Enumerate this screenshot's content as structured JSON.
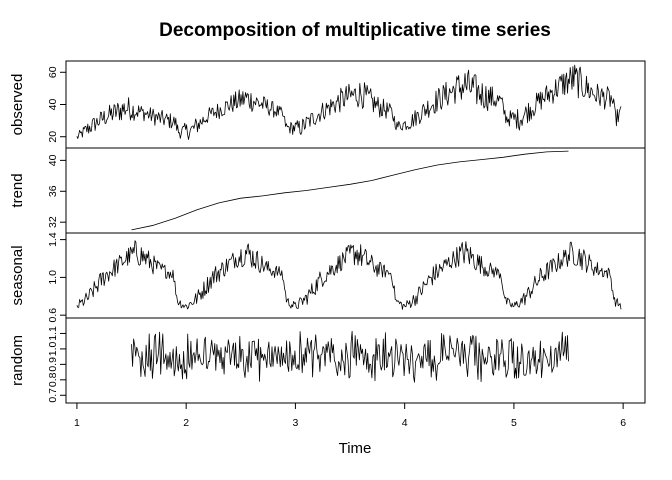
{
  "chart_data": {
    "type": "line",
    "title": "Decomposition of multiplicative time series",
    "xlabel": "Time",
    "xlim": [
      0.9,
      6.2
    ],
    "x_ticks": [
      "1",
      "2",
      "3",
      "4",
      "5",
      "6"
    ],
    "x_tick_values": [
      1,
      2,
      3,
      4,
      5,
      6
    ],
    "series_color": "#000000",
    "panels": [
      {
        "ylabel": "observed",
        "ylim": [
          13,
          67
        ],
        "y_ticks": [
          "20",
          "40",
          "60"
        ],
        "y_tick_values": [
          20,
          40,
          60
        ],
        "x_range": [
          1.0,
          5.98
        ],
        "envelope": [
          {
            "x": 1.0,
            "lo": 17,
            "hi": 22
          },
          {
            "x": 1.1,
            "lo": 20,
            "hi": 30
          },
          {
            "x": 1.25,
            "lo": 26,
            "hi": 38
          },
          {
            "x": 1.45,
            "lo": 30,
            "hi": 46
          },
          {
            "x": 1.6,
            "lo": 30,
            "hi": 40
          },
          {
            "x": 1.75,
            "lo": 26,
            "hi": 37
          },
          {
            "x": 1.9,
            "lo": 24,
            "hi": 34
          },
          {
            "x": 1.93,
            "lo": 19,
            "hi": 27
          },
          {
            "x": 2.05,
            "lo": 18,
            "hi": 30
          },
          {
            "x": 2.2,
            "lo": 28,
            "hi": 38
          },
          {
            "x": 2.4,
            "lo": 34,
            "hi": 46
          },
          {
            "x": 2.55,
            "lo": 36,
            "hi": 52
          },
          {
            "x": 2.75,
            "lo": 33,
            "hi": 44
          },
          {
            "x": 2.88,
            "lo": 30,
            "hi": 38
          },
          {
            "x": 2.92,
            "lo": 22,
            "hi": 29
          },
          {
            "x": 3.05,
            "lo": 20,
            "hi": 31
          },
          {
            "x": 3.25,
            "lo": 30,
            "hi": 42
          },
          {
            "x": 3.45,
            "lo": 36,
            "hi": 52
          },
          {
            "x": 3.6,
            "lo": 38,
            "hi": 56
          },
          {
            "x": 3.75,
            "lo": 32,
            "hi": 46
          },
          {
            "x": 3.88,
            "lo": 30,
            "hi": 40
          },
          {
            "x": 3.93,
            "lo": 23,
            "hi": 30
          },
          {
            "x": 4.05,
            "lo": 24,
            "hi": 34
          },
          {
            "x": 4.25,
            "lo": 33,
            "hi": 48
          },
          {
            "x": 4.45,
            "lo": 40,
            "hi": 58
          },
          {
            "x": 4.55,
            "lo": 40,
            "hi": 64
          },
          {
            "x": 4.75,
            "lo": 36,
            "hi": 54
          },
          {
            "x": 4.88,
            "lo": 36,
            "hi": 48
          },
          {
            "x": 4.93,
            "lo": 27,
            "hi": 36
          },
          {
            "x": 5.05,
            "lo": 24,
            "hi": 38
          },
          {
            "x": 5.25,
            "lo": 36,
            "hi": 50
          },
          {
            "x": 5.45,
            "lo": 44,
            "hi": 62
          },
          {
            "x": 5.55,
            "lo": 45,
            "hi": 67
          },
          {
            "x": 5.75,
            "lo": 38,
            "hi": 54
          },
          {
            "x": 5.9,
            "lo": 36,
            "hi": 50
          },
          {
            "x": 5.93,
            "lo": 26,
            "hi": 36
          },
          {
            "x": 5.98,
            "lo": 30,
            "hi": 40
          }
        ]
      },
      {
        "ylabel": "trend",
        "ylim": [
          30.6,
          41.6
        ],
        "y_ticks": [
          "32",
          "36",
          "40"
        ],
        "y_tick_values": [
          32,
          36,
          40
        ],
        "x_range": [
          1.5,
          5.5
        ],
        "points": [
          {
            "x": 1.5,
            "y": 31.0
          },
          {
            "x": 1.7,
            "y": 31.6
          },
          {
            "x": 1.9,
            "y": 32.5
          },
          {
            "x": 2.1,
            "y": 33.6
          },
          {
            "x": 2.3,
            "y": 34.5
          },
          {
            "x": 2.5,
            "y": 35.1
          },
          {
            "x": 2.7,
            "y": 35.4
          },
          {
            "x": 2.9,
            "y": 35.8
          },
          {
            "x": 3.1,
            "y": 36.1
          },
          {
            "x": 3.3,
            "y": 36.5
          },
          {
            "x": 3.5,
            "y": 36.9
          },
          {
            "x": 3.7,
            "y": 37.4
          },
          {
            "x": 3.9,
            "y": 38.1
          },
          {
            "x": 4.1,
            "y": 38.8
          },
          {
            "x": 4.3,
            "y": 39.4
          },
          {
            "x": 4.5,
            "y": 39.8
          },
          {
            "x": 4.7,
            "y": 40.1
          },
          {
            "x": 4.9,
            "y": 40.4
          },
          {
            "x": 5.1,
            "y": 40.8
          },
          {
            "x": 5.3,
            "y": 41.1
          },
          {
            "x": 5.5,
            "y": 41.2
          }
        ]
      },
      {
        "ylabel": "seasonal",
        "ylim": [
          0.57,
          1.47
        ],
        "y_ticks": [
          "0.6",
          "1.0",
          "1.4"
        ],
        "y_tick_values": [
          0.6,
          1.0,
          1.4
        ],
        "x_range": [
          1.0,
          5.98
        ],
        "period_shape": [
          {
            "phase": 0.0,
            "lo": 0.64,
            "hi": 0.74
          },
          {
            "phase": 0.1,
            "lo": 0.7,
            "hi": 0.86
          },
          {
            "phase": 0.25,
            "lo": 0.9,
            "hi": 1.12
          },
          {
            "phase": 0.45,
            "lo": 1.1,
            "hi": 1.3
          },
          {
            "phase": 0.55,
            "lo": 1.12,
            "hi": 1.42
          },
          {
            "phase": 0.75,
            "lo": 1.0,
            "hi": 1.18
          },
          {
            "phase": 0.88,
            "lo": 0.98,
            "hi": 1.1
          },
          {
            "phase": 0.92,
            "lo": 0.7,
            "hi": 0.8
          },
          {
            "phase": 1.0,
            "lo": 0.64,
            "hi": 0.74
          }
        ]
      },
      {
        "ylabel": "random",
        "ylim": [
          0.65,
          1.2
        ],
        "y_ticks": [
          "0.7",
          "0.9",
          "1.1"
        ],
        "y_ticks_minor": [
          "0.8",
          "1.0"
        ],
        "y_tick_values": [
          0.7,
          0.9,
          1.1
        ],
        "y_tick_values_minor": [
          0.8,
          1.0
        ],
        "x_range": [
          1.5,
          5.5
        ],
        "center": 0.95,
        "spread": [
          0.78,
          1.15
        ]
      }
    ]
  }
}
